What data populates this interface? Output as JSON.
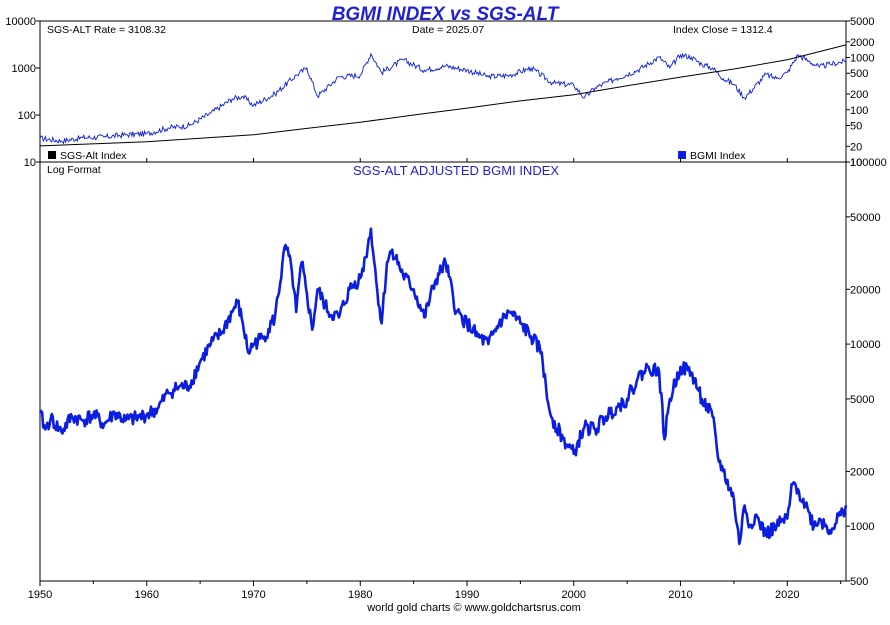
{
  "chart_data": [
    {
      "type": "line",
      "title": "BGMI INDEX vs SGS-ALT",
      "y_scale": "log",
      "ylim_left": [
        10,
        10000
      ],
      "ylim_right": [
        10,
        5000
      ],
      "left_ticks": [
        "10",
        "100",
        "1000",
        "10000"
      ],
      "right_ticks": [
        "5000",
        "2000",
        "1000",
        "500",
        "200",
        "100",
        "50",
        "20",
        "10"
      ],
      "info": {
        "rate": "SGS-ALT Rate = 3108.32",
        "date": "Date = 2025.07",
        "close": "Index Close = 1312.4"
      },
      "legend": {
        "sgs_label": "SGS-Alt Index",
        "bgmi_label": "BGMI Index",
        "sgs_color": "#000000",
        "bgmi_color": "#0b1ee0"
      },
      "series": [
        {
          "name": "BGMI Index",
          "color": "#0b1ee0",
          "x": [
            1950,
            1952,
            1954,
            1956,
            1958,
            1960,
            1962,
            1964,
            1966,
            1968,
            1969,
            1970,
            1972,
            1974,
            1975,
            1976,
            1978,
            1980,
            1981,
            1982,
            1984,
            1986,
            1988,
            1990,
            1992,
            1994,
            1996,
            1998,
            2000,
            2001,
            2002,
            2004,
            2006,
            2008,
            2009,
            2010,
            2011,
            2012,
            2013,
            2014,
            2015,
            2016,
            2018,
            2019,
            2020,
            2021,
            2022,
            2023,
            2024,
            2025.5
          ],
          "values": [
            32,
            28,
            33,
            34,
            38,
            40,
            53,
            60,
            110,
            220,
            250,
            160,
            280,
            700,
            1000,
            250,
            650,
            700,
            2000,
            800,
            1500,
            900,
            1100,
            900,
            650,
            700,
            1000,
            480,
            430,
            230,
            380,
            600,
            900,
            1700,
            1000,
            1900,
            1700,
            1200,
            1000,
            600,
            450,
            230,
            730,
            600,
            800,
            1900,
            1400,
            1050,
            1200,
            1400
          ]
        },
        {
          "name": "SGS-Alt Index",
          "color": "#000000",
          "x": [
            1950,
            1960,
            1970,
            1975,
            1980,
            1985,
            1990,
            1995,
            2000,
            2005,
            2010,
            2015,
            2020,
            2025.5
          ],
          "values": [
            22,
            27,
            38,
            52,
            70,
            100,
            140,
            200,
            270,
            420,
            640,
            950,
            1500,
            3100
          ]
        }
      ]
    },
    {
      "type": "line",
      "title": "SGS-ALT ADJUSTED BGMI INDEX",
      "note": "Log Format",
      "y_scale": "log",
      "ylim": [
        500,
        100000
      ],
      "right_ticks": [
        "100000",
        "50000",
        "20000",
        "10000",
        "5000",
        "2000",
        "1000",
        "500"
      ],
      "x_ticks": [
        "1950",
        "1960",
        "1970",
        "1980",
        "1990",
        "2000",
        "2010",
        "2020"
      ],
      "xlim": [
        1950,
        2025.5
      ],
      "series": [
        {
          "name": "SGS-ALT Adjusted BGMI",
          "color": "#0b1ee0",
          "x": [
            1950,
            1950.5,
            1951,
            1952,
            1953,
            1954,
            1955,
            1956,
            1957,
            1958,
            1959,
            1960,
            1961,
            1962,
            1963,
            1964,
            1965,
            1966,
            1967,
            1968,
            1968.5,
            1969,
            1969.5,
            1970,
            1971,
            1972,
            1973,
            1973.6,
            1974,
            1974.5,
            1975,
            1975.5,
            1976,
            1977,
            1978,
            1979,
            1980,
            1980.5,
            1981,
            1981.5,
            1982,
            1982.5,
            1983,
            1984,
            1985,
            1986,
            1987,
            1988,
            1989,
            1990,
            1991,
            1992,
            1993,
            1994,
            1995,
            1996,
            1997,
            1997.5,
            1998,
            1999,
            2000,
            2001,
            2002,
            2003,
            2004,
            2005,
            2006,
            2007,
            2008,
            2008.5,
            2009,
            2010,
            2011,
            2012,
            2013,
            2013.5,
            2014,
            2015,
            2015.5,
            2016,
            2016.5,
            2017,
            2018,
            2019,
            2020,
            2020.5,
            2021,
            2022,
            2022.5,
            2023,
            2024,
            2025,
            2025.5
          ],
          "values": [
            4200,
            3400,
            3900,
            3300,
            4000,
            3800,
            4100,
            3600,
            4200,
            3800,
            3900,
            4100,
            4400,
            5400,
            5800,
            5900,
            8000,
            10000,
            11500,
            15000,
            17000,
            13000,
            9000,
            10000,
            11000,
            14000,
            35000,
            25000,
            15000,
            28000,
            19000,
            12000,
            20000,
            15000,
            14000,
            20000,
            23000,
            30000,
            43000,
            22000,
            13000,
            28000,
            33000,
            24000,
            20000,
            14000,
            22000,
            28000,
            15000,
            13000,
            11000,
            10000,
            13000,
            15000,
            13000,
            11000,
            9000,
            5000,
            3900,
            3000,
            2500,
            3500,
            3400,
            4000,
            4500,
            5000,
            6500,
            7500,
            7000,
            3000,
            5000,
            7500,
            7000,
            5000,
            4000,
            2400,
            2000,
            1400,
            800,
            1300,
            1000,
            1150,
            900,
            1000,
            1100,
            1700,
            1600,
            1200,
            1000,
            1100,
            950,
            1150,
            1300
          ]
        }
      ]
    }
  ],
  "footer": "world gold charts © www.goldchartsrus.com"
}
